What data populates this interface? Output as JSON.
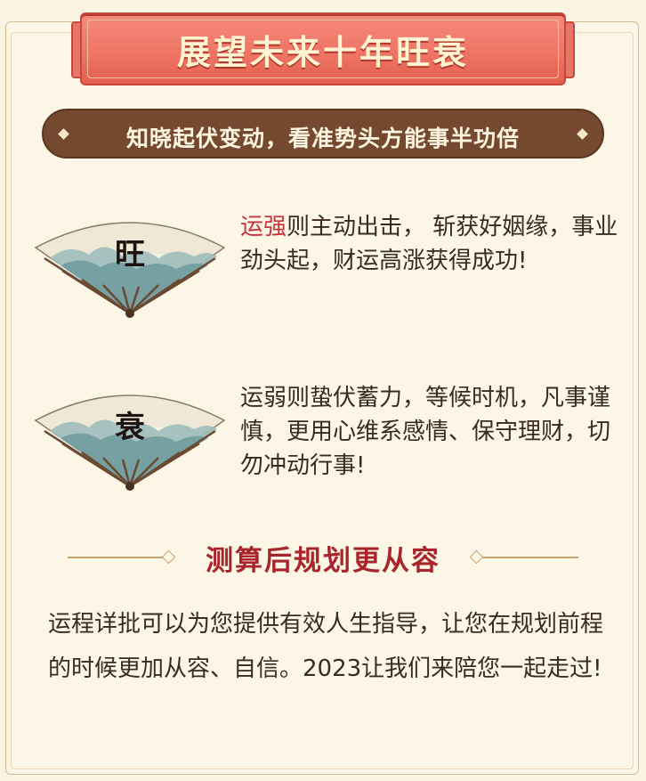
{
  "header": {
    "title": "展望未来十年旺衰"
  },
  "subtitle": {
    "text": "知晓起伏变动，看准势头方能事半功倍"
  },
  "fortune_items": [
    {
      "fan_char": "旺",
      "highlight": "运强",
      "text": "则主动出击， 斩获好姻缘，事业劲头起，财运高涨获得成功!"
    },
    {
      "fan_char": "衰",
      "highlight": "",
      "text": "运弱则蛰伏蓄力，等候时机，凡事谨慎，更用心维系感情、保守理财，切勿冲动行事!"
    }
  ],
  "section": {
    "title": "测算后规划更从容"
  },
  "paragraph": {
    "text": "运程详批可以为您提供有效人生指导，让您在规划前程的时候更加从容、自信。2023让我们来陪您一起走过!"
  },
  "colors": {
    "banner_red": "#ef7565",
    "pill_brown": "#74492f",
    "highlight_red": "#c8333b",
    "section_red": "#a8252b",
    "background": "#fbf6e6"
  }
}
